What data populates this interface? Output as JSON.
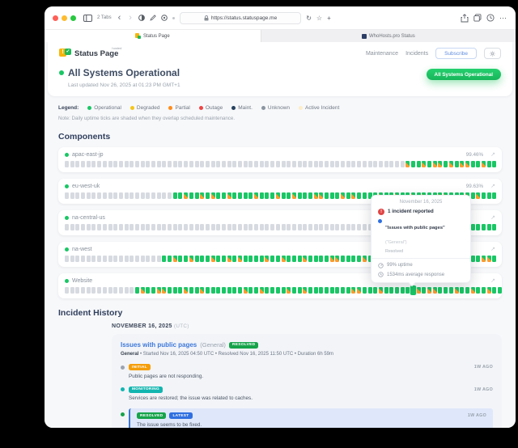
{
  "browser": {
    "tabs_count": "2 Tabs",
    "url": "https://status.statuspage.me",
    "tab1": "Status Page",
    "tab2": "WhoHosts.pro Status"
  },
  "header": {
    "logo_text": "Status Page",
    "logo_sup": "hosted",
    "logo_mark": "!",
    "logo_check": "✓",
    "nav": [
      "Maintenance",
      "Incidents"
    ],
    "subscribe_label": "Subscribe"
  },
  "status": {
    "title": "All Systems Operational",
    "last_updated": "Last updated Nov 26, 2025 at 01:23 PM GMT+1",
    "badge": "All Systems Operational"
  },
  "legend": {
    "label": "Legend:",
    "items": [
      {
        "label": "Operational",
        "color": "#19c765"
      },
      {
        "label": "Degraded",
        "color": "#f5c518"
      },
      {
        "label": "Partial",
        "color": "#ff8c1a"
      },
      {
        "label": "Outage",
        "color": "#ef4444"
      },
      {
        "label": "Maint.",
        "color": "#26415e"
      },
      {
        "label": "Unknown",
        "color": "#8b95a1"
      },
      {
        "label": "Active Incident",
        "color": "#fdeec9"
      }
    ],
    "note": "Note: Daily uptime ticks are shaded when they overlap scheduled maintenance."
  },
  "components": {
    "heading": "Components",
    "expand_glyph": "↗",
    "items": [
      {
        "name": "apac-east-jp",
        "uptime": "99.46%",
        "ticks": "uuuuuuuuuuuuuuuuuuuuuuuuuuuuuuuuuuuuuuuuuuuuuuuuuuuuuuuuuuuuuuumggmgmmgmgmmggmgg"
      },
      {
        "name": "eu-west-uk",
        "uptime": "99.63%",
        "ticks": "uuuuuuuuuuuuuuuuuuuuggmggmgmggmggggmgggmggmgggmmgggmgmggggmggmggmgmggmmgggmgmggg"
      },
      {
        "name": "na-central-us",
        "uptime": "",
        "ticks": "uuuuuuuuuuuuuuuuuuuuuuuuuuuuuuuuuuuuuuuuuuuuuuuuuuuuuuuuuuuuuuuuuuuuuugggmgggggg"
      },
      {
        "name": "na-west",
        "uptime": "",
        "ticks": "uuuuuuuuuuuuuuuuuuggmggmgggmggmgmggggmggmgggmggggmmggggmgggmggmggggmggggmggggmmg"
      },
      {
        "name": "Website",
        "uptime": "",
        "hover_index": 64,
        "ticks": "uuuuuuuuuuuuugmggmmgggmggmgggggggmggmggggmggmggggggggmmgggmggggggmgmmgggmggmggmgg"
      }
    ]
  },
  "tooltip": {
    "date": "November 16, 2025",
    "alert_glyph": "!",
    "incident_count": "1 incident reported",
    "incident_title": "\"Issues with public pages\"",
    "incident_scope": "(\"General\")",
    "incident_state": "Resolved",
    "uptime": "99% uptime",
    "response": "1534ms average response"
  },
  "incidents": {
    "heading": "Incident History",
    "date_header": "NOVEMBER 16, 2025",
    "date_tz": "(UTC)",
    "incident": {
      "title": "Issues with public pages",
      "scope": "(General)",
      "status_badge": "RESOLVED",
      "status_badge_color": "#16a34a",
      "meta_component": "General",
      "meta_rest": " • Started Nov 16, 2025 04:50 UTC • Resolved Nov 16, 2025 11:50 UTC • Duration 6h 59m",
      "updates": [
        {
          "badges": [
            {
              "label": "INITIAL",
              "color": "#f59e0b"
            }
          ],
          "dot": "#9ca3af",
          "time": "1W AGO",
          "text": "Public pages are not responding.",
          "highlight": false
        },
        {
          "badges": [
            {
              "label": "MONITORING",
              "color": "#12b5b0"
            }
          ],
          "dot": "#12b5b0",
          "time": "1W AGO",
          "text": "Services are restored; the issue was related to caches.",
          "highlight": false
        },
        {
          "badges": [
            {
              "label": "RESOLVED",
              "color": "#16a34a"
            },
            {
              "label": "LATEST",
              "color": "#2f6fe0"
            }
          ],
          "dot": "#16a34a",
          "time": "1W AGO",
          "text": "The issue seems to be fixed.",
          "highlight": true
        }
      ]
    }
  }
}
